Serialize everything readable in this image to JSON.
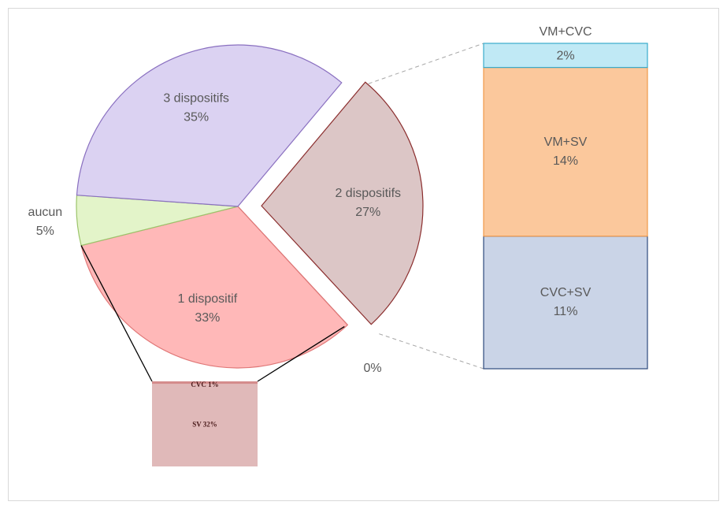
{
  "chart_data": {
    "type": "pie",
    "categories": [
      "2 dispositifs",
      null,
      "1 dispositif",
      "aucun",
      "3 dispositifs"
    ],
    "values": [
      27,
      0,
      33,
      5,
      35
    ],
    "value_labels": [
      "27%",
      "0%",
      "33%",
      "5%",
      "35%"
    ],
    "colors": [
      "#dcc6c6",
      "#dcc6c6",
      "#ffb8b8",
      "#e3f4c9",
      "#dbd2f2"
    ],
    "exploded": [
      true,
      false,
      false,
      false,
      false
    ],
    "details": [
      {
        "categories": [
          "CVC+SV",
          "VM+SV",
          "VM+CVC"
        ],
        "values": [
          11,
          14,
          2
        ],
        "value_labels": [
          "11%",
          "14%",
          "2%"
        ],
        "colors": [
          "#cad4e7",
          "#fbc89c",
          "#c0e9f5"
        ]
      },
      null,
      {
        "categories": [
          "SV",
          "CVC"
        ],
        "values": [
          32,
          1
        ],
        "value_labels": [
          "32%",
          "1%"
        ],
        "colors": [
          "#e0b9b9",
          "#d48c8c"
        ]
      },
      null,
      null
    ]
  }
}
